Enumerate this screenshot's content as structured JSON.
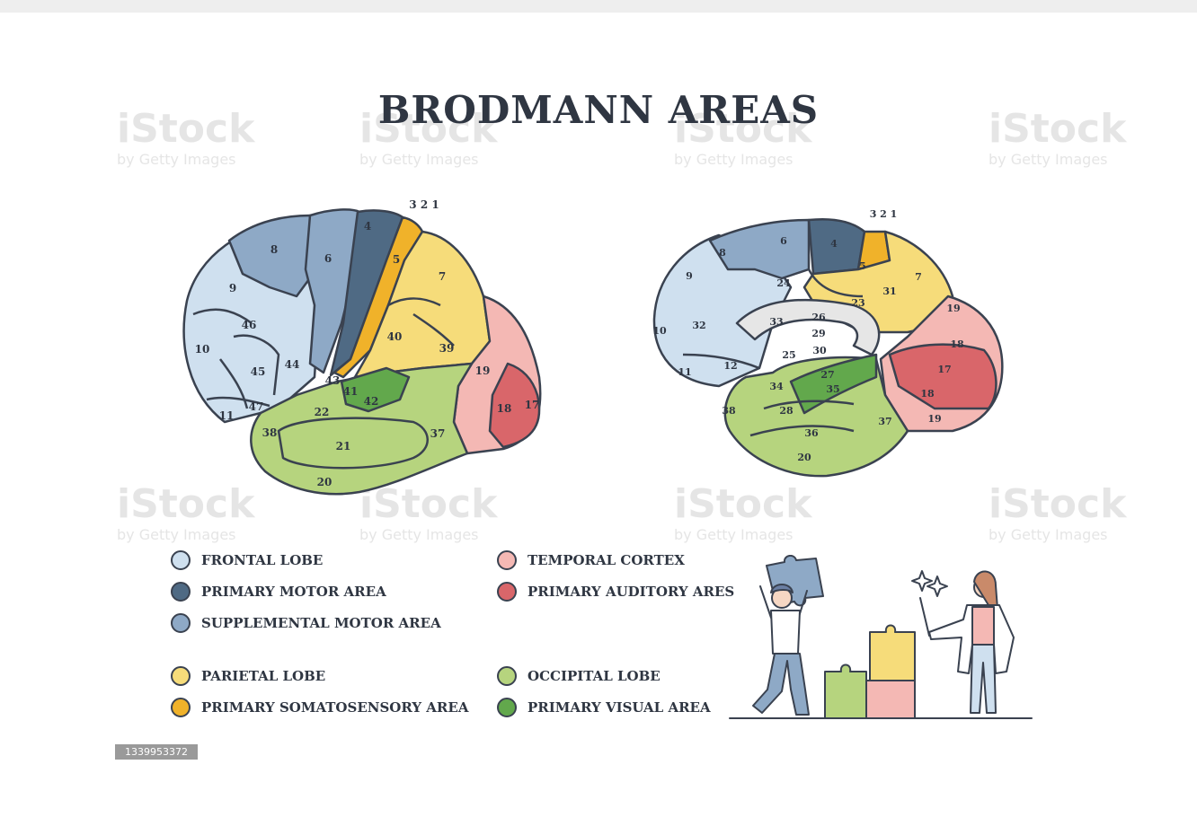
{
  "title": "BRODMANN AREAS",
  "colors": {
    "frontal_lobe": "#cfe0ef",
    "primary_motor_area": "#4f6a84",
    "supplemental_motor_area": "#8ea9c6",
    "parietal_lobe": "#f6dc7a",
    "primary_somatosensory_area": "#f0b22a",
    "temporal_cortex": "#f4b8b4",
    "primary_auditory_ares": "#d9666a",
    "occipital_lobe": "#b6d47e",
    "primary_visual_area": "#62a84c",
    "outline": "#3a4250"
  },
  "lateral_view": {
    "labels": {
      "a321": "3 2 1",
      "a4": "4",
      "a5": "5",
      "a6": "6",
      "a7": "7",
      "a8": "8",
      "a9": "9",
      "a10": "10",
      "a11": "11",
      "a17": "17",
      "a18": "18",
      "a19": "19",
      "a20": "20",
      "a21": "21",
      "a22": "22",
      "a37": "37",
      "a38": "38",
      "a39": "39",
      "a40": "40",
      "a41": "41",
      "a42": "42",
      "a43": "43",
      "a44": "44",
      "a45": "45",
      "a46": "46",
      "a47": "47"
    }
  },
  "medial_view": {
    "labels": {
      "a321": "3 2 1",
      "a4": "4",
      "a5": "5",
      "a6": "6",
      "a7": "7",
      "a8": "8",
      "a9": "9",
      "a10": "10",
      "a11": "11",
      "a12": "12",
      "a17": "17",
      "a18a": "18",
      "a18b": "18",
      "a19a": "19",
      "a19b": "19",
      "a20": "20",
      "a23": "23",
      "a24": "24",
      "a25": "25",
      "a26": "26",
      "a27": "27",
      "a28": "28",
      "a29": "29",
      "a30": "30",
      "a31": "31",
      "a32": "32",
      "a33": "33",
      "a34": "34",
      "a35": "35",
      "a36": "36",
      "a37": "37",
      "a38": "38"
    }
  },
  "legend": [
    {
      "label": "FRONTAL LOBE",
      "color": "#cfe0ef"
    },
    {
      "label": "PRIMARY MOTOR AREA",
      "color": "#4f6a84"
    },
    {
      "label": "SUPPLEMENTAL MOTOR AREA",
      "color": "#8ea9c6"
    },
    {
      "label": "PARIETAL LOBE",
      "color": "#f6dc7a"
    },
    {
      "label": "PRIMARY SOMATOSENSORY AREA",
      "color": "#f0b22a"
    },
    {
      "label": "TEMPORAL CORTEX",
      "color": "#f4b8b4"
    },
    {
      "label": "PRIMARY AUDITORY ARES",
      "color": "#d9666a"
    },
    {
      "label": "OCCIPITAL LOBE",
      "color": "#b6d47e"
    },
    {
      "label": "PRIMARY VISUAL AREA",
      "color": "#62a84c"
    }
  ],
  "watermark": {
    "brand": "iStock",
    "byline": "by Getty Images"
  },
  "image_id": "1339953372"
}
